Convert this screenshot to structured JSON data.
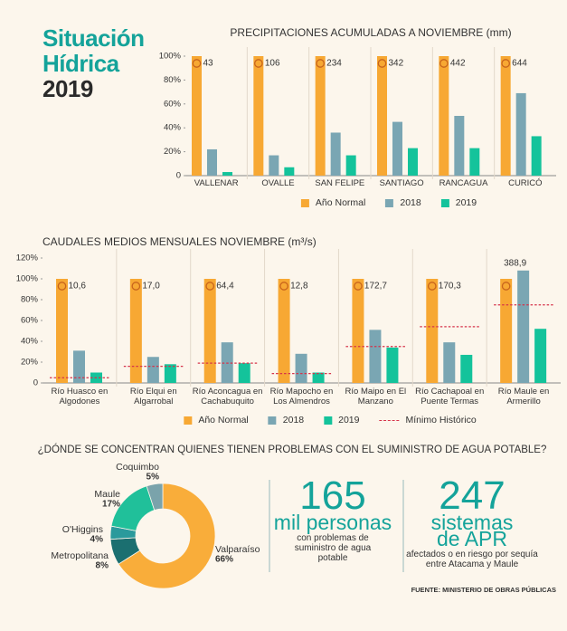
{
  "header": {
    "title": [
      "Situación",
      "Hídrica"
    ],
    "year": 2019
  },
  "chart_data": [
    {
      "type": "bar",
      "title": "PRECIPITACIONES ACUMULADAS A NOVIEMBRE  (mm)",
      "categories": [
        "VALLENAR",
        "OVALLE",
        "SAN FELIPE",
        "SANTIAGO",
        "RANCAGUA",
        "CURICÓ"
      ],
      "series": [
        {
          "name": "Año Normal",
          "color": "#f7a833",
          "values": [
            100,
            100,
            100,
            100,
            100,
            100
          ]
        },
        {
          "name": "2018",
          "color": "#7aa6b3",
          "values": [
            22,
            17,
            36,
            45,
            50,
            69
          ]
        },
        {
          "name": "2019",
          "color": "#14c39b",
          "values": [
            3,
            7,
            17,
            23,
            23,
            33
          ]
        }
      ],
      "annotations": [
        43,
        106,
        234,
        342,
        442,
        644
      ],
      "ylim": [
        0,
        100
      ],
      "yticks": [
        0,
        {
          "value": 20,
          "label": "20%"
        },
        {
          "value": 40,
          "label": "40%"
        },
        {
          "value": 60,
          "label": "60%"
        },
        {
          "value": 80,
          "label": "80%"
        },
        {
          "value": 100,
          "label": "100%"
        }
      ],
      "grid": false
    },
    {
      "type": "bar",
      "title": "CAUDALES MEDIOS MENSUALES NOVIEMBRE (m³/s)",
      "categories": [
        "Río Huasco en Algodones",
        "Río Elqui en Algarrobal",
        "Río Aconcagua en Cachabuquito",
        "Río Mapocho en Los Almendros",
        "Río Maipo en El Manzano",
        "Río Cachapoal en Puente Termas",
        "Río Maule en Armerillo"
      ],
      "series": [
        {
          "name": "Año Normal",
          "color": "#f7a833",
          "values": [
            100,
            100,
            100,
            100,
            100,
            100,
            100
          ]
        },
        {
          "name": "2018",
          "color": "#7aa6b3",
          "values": [
            31,
            25,
            39,
            28,
            51,
            39,
            108
          ]
        },
        {
          "name": "2019",
          "color": "#14c39b",
          "values": [
            10,
            18,
            19,
            10,
            34,
            27,
            52
          ]
        },
        {
          "name": "Mínimo Histórico",
          "color": "#d6334a",
          "marker": "dash",
          "values": [
            5,
            16,
            19,
            9,
            35,
            54,
            75
          ]
        }
      ],
      "annotations": [
        "10,6",
        "17,0",
        "64,4",
        "12,8",
        "172,7",
        "170,3",
        "388,9"
      ],
      "ylim": [
        0,
        120
      ],
      "yticks": [
        0,
        {
          "value": 20,
          "label": "20%"
        },
        {
          "value": 40,
          "label": "40%"
        },
        {
          "value": 60,
          "label": "60%"
        },
        {
          "value": 80,
          "label": "80%"
        },
        {
          "value": 100,
          "label": "100%"
        },
        {
          "value": 120,
          "label": "120%"
        }
      ],
      "grid": false
    },
    {
      "type": "pie",
      "title": "¿DÓNDE SE CONCENTRAN QUIENES TIENEN PROBLEMAS CON EL SUMINISTRO DE AGUA POTABLE?",
      "categories": [
        "Valparaíso",
        "Metropolitana",
        "O'Higgins",
        "Maule",
        "Coquimbo"
      ],
      "values": [
        66,
        8,
        4,
        17,
        5
      ],
      "value_labels": [
        "66%",
        "8%",
        "4%",
        "17%",
        "5%"
      ],
      "colors": [
        "#f9ad3a",
        "#1b6f70",
        "#2a9a9c",
        "#20c09a",
        "#7aa3ab"
      ]
    }
  ],
  "stats": [
    {
      "number": 165,
      "headline": "mil personas",
      "text": "con problemas de suministro de agua potable"
    },
    {
      "number": 247,
      "headline": "sistemas de APR",
      "text": "afectados o en riesgo por sequía entre Atacama y Maule"
    }
  ],
  "source": "FUENTE: MINISTERIO DE OBRAS PÚBLICAS"
}
